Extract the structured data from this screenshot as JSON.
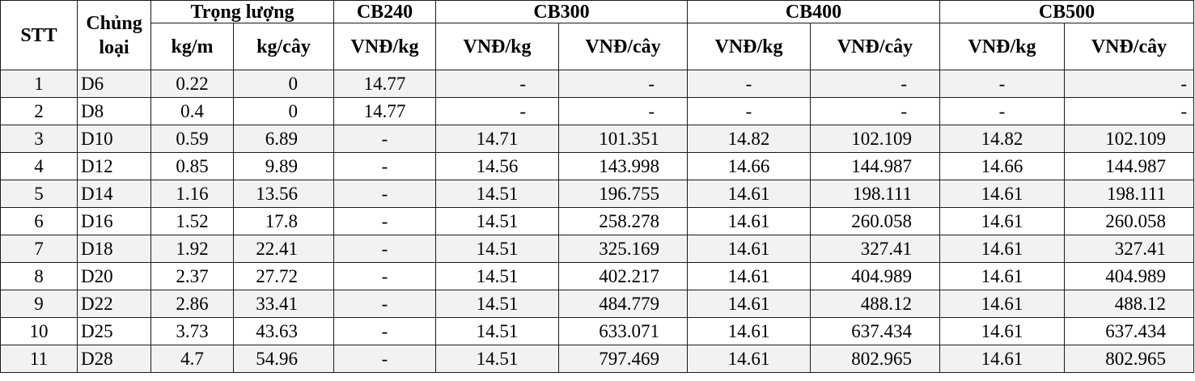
{
  "header": {
    "stt": "STT",
    "chung_loai": "Chủng loại",
    "trong_luong": "Trọng lượng",
    "cb240": "CB240",
    "cb300": "CB300",
    "cb400": "CB400",
    "cb500": "CB500",
    "kg_m": "kg/m",
    "kg_cay": "kg/cây",
    "cb240_vnd_kg": "VNĐ/kg",
    "cb300_vnd_kg": "VNĐ/kg",
    "cb300_vnd_cay": "VNĐ/cây",
    "cb400_vnd_kg": "VNĐ/kg",
    "cb400_vnd_cay": "VNĐ/cây",
    "cb500_vnd_kg": "VNĐ/kg",
    "cb500_vnd_cay": "VNĐ/cây"
  },
  "rows": [
    {
      "stt": "1",
      "loai": "D6",
      "kg_m": "0.22",
      "kg_cay": "0",
      "cb240": "14.77",
      "cb300_kg": "-",
      "cb300_cay": "-",
      "cb400_kg": "-",
      "cb400_cay": "-",
      "cb500_kg": "-",
      "cb500_cay": "-"
    },
    {
      "stt": "2",
      "loai": "D8",
      "kg_m": "0.4",
      "kg_cay": "0",
      "cb240": "14.77",
      "cb300_kg": "-",
      "cb300_cay": "-",
      "cb400_kg": "-",
      "cb400_cay": "-",
      "cb500_kg": "-",
      "cb500_cay": "-"
    },
    {
      "stt": "3",
      "loai": "D10",
      "kg_m": "0.59",
      "kg_cay": "6.89",
      "cb240": "-",
      "cb300_kg": "14.71",
      "cb300_cay": "101.351",
      "cb400_kg": "14.82",
      "cb400_cay": "102.109",
      "cb500_kg": "14.82",
      "cb500_cay": "102.109"
    },
    {
      "stt": "4",
      "loai": "D12",
      "kg_m": "0.85",
      "kg_cay": "9.89",
      "cb240": "-",
      "cb300_kg": "14.56",
      "cb300_cay": "143.998",
      "cb400_kg": "14.66",
      "cb400_cay": "144.987",
      "cb500_kg": "14.66",
      "cb500_cay": "144.987"
    },
    {
      "stt": "5",
      "loai": "D14",
      "kg_m": "1.16",
      "kg_cay": "13.56",
      "cb240": "-",
      "cb300_kg": "14.51",
      "cb300_cay": "196.755",
      "cb400_kg": "14.61",
      "cb400_cay": "198.111",
      "cb500_kg": "14.61",
      "cb500_cay": "198.111"
    },
    {
      "stt": "6",
      "loai": "D16",
      "kg_m": "1.52",
      "kg_cay": "17.8",
      "cb240": "-",
      "cb300_kg": "14.51",
      "cb300_cay": "258.278",
      "cb400_kg": "14.61",
      "cb400_cay": "260.058",
      "cb500_kg": "14.61",
      "cb500_cay": "260.058"
    },
    {
      "stt": "7",
      "loai": "D18",
      "kg_m": "1.92",
      "kg_cay": "22.41",
      "cb240": "-",
      "cb300_kg": "14.51",
      "cb300_cay": "325.169",
      "cb400_kg": "14.61",
      "cb400_cay": "327.41",
      "cb500_kg": "14.61",
      "cb500_cay": "327.41"
    },
    {
      "stt": "8",
      "loai": "D20",
      "kg_m": "2.37",
      "kg_cay": "27.72",
      "cb240": "-",
      "cb300_kg": "14.51",
      "cb300_cay": "402.217",
      "cb400_kg": "14.61",
      "cb400_cay": "404.989",
      "cb500_kg": "14.61",
      "cb500_cay": "404.989"
    },
    {
      "stt": "9",
      "loai": "D22",
      "kg_m": "2.86",
      "kg_cay": "33.41",
      "cb240": "-",
      "cb300_kg": "14.51",
      "cb300_cay": "484.779",
      "cb400_kg": "14.61",
      "cb400_cay": "488.12",
      "cb500_kg": "14.61",
      "cb500_cay": "488.12"
    },
    {
      "stt": "10",
      "loai": "D25",
      "kg_m": "3.73",
      "kg_cay": "43.63",
      "cb240": "-",
      "cb300_kg": "14.51",
      "cb300_cay": "633.071",
      "cb400_kg": "14.61",
      "cb400_cay": "637.434",
      "cb500_kg": "14.61",
      "cb500_cay": "637.434"
    },
    {
      "stt": "11",
      "loai": "D28",
      "kg_m": "4.7",
      "kg_cay": "54.96",
      "cb240": "-",
      "cb300_kg": "14.51",
      "cb300_cay": "797.469",
      "cb400_kg": "14.61",
      "cb400_cay": "802.965",
      "cb500_kg": "14.61",
      "cb500_cay": "802.965"
    }
  ]
}
